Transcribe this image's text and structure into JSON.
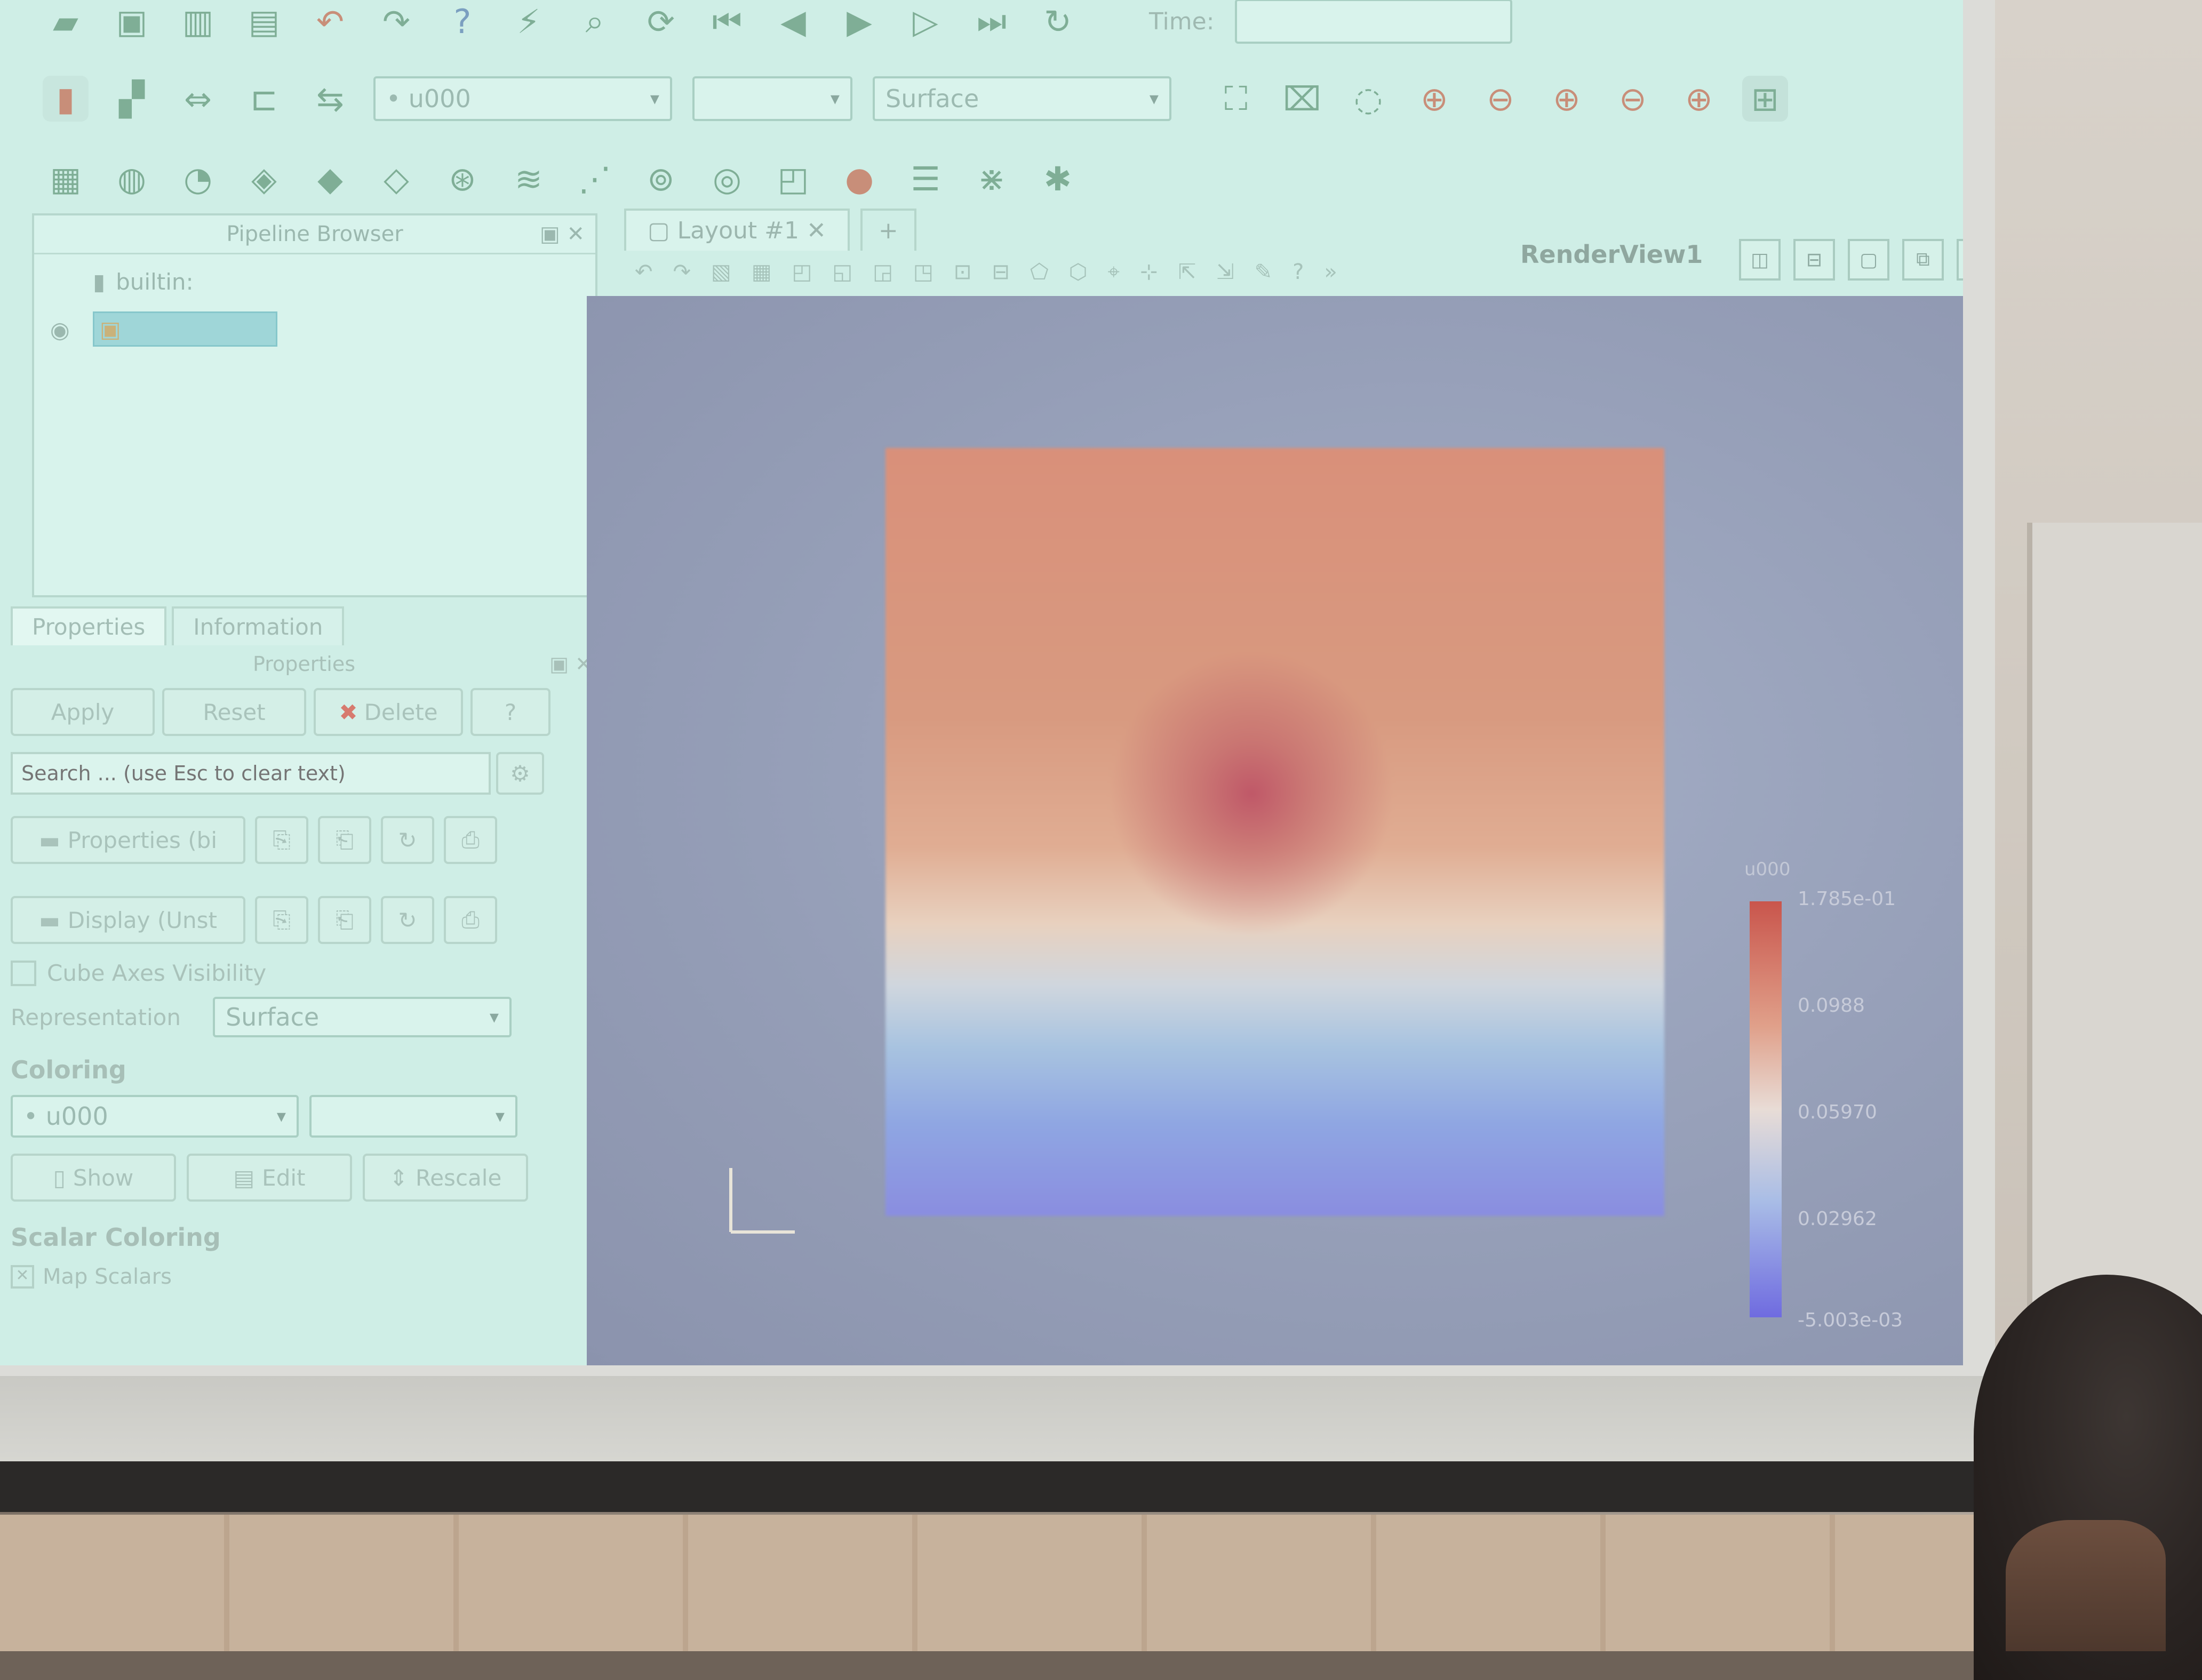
{
  "toolbar": {
    "time_label": "Time:",
    "array_combo": "• u000",
    "component_combo": "",
    "representation_combo": "Surface"
  },
  "pipeline": {
    "title": "Pipeline Browser",
    "root": "builtin:",
    "selected_item": ""
  },
  "properties_panel": {
    "tabs": [
      "Properties",
      "Information"
    ],
    "title": "Properties",
    "apply": "Apply",
    "reset": "Reset",
    "delete": "Delete",
    "help": "?",
    "search_placeholder": "Search ... (use Esc to clear text)",
    "section_properties": "Properties (bi",
    "section_display": "Display (Unst",
    "cube_axes": "Cube Axes Visibility",
    "representation_label": "Representation",
    "representation_value": "Surface",
    "coloring_title": "Coloring",
    "coloring_value": "• u000",
    "show": "Show",
    "edit": "Edit",
    "rescale": "Rescale",
    "scalar_coloring_title": "Scalar Coloring",
    "map_scalars": "Map Scalars"
  },
  "layout": {
    "tab": "Layout #1",
    "add_tab": "+",
    "render_view": "RenderView1"
  },
  "legend": {
    "title": "u000",
    "labels": [
      "1.785e-01",
      "0.0988",
      "0.05970",
      "0.02962",
      "-5.003e-03"
    ],
    "colors": {
      "high": "#c9554c",
      "mid": "#e8dcd6",
      "low": "#6f6be0"
    }
  },
  "icons": {
    "play": "play-icon",
    "first": "first-frame-icon",
    "last": "last-frame-icon"
  }
}
